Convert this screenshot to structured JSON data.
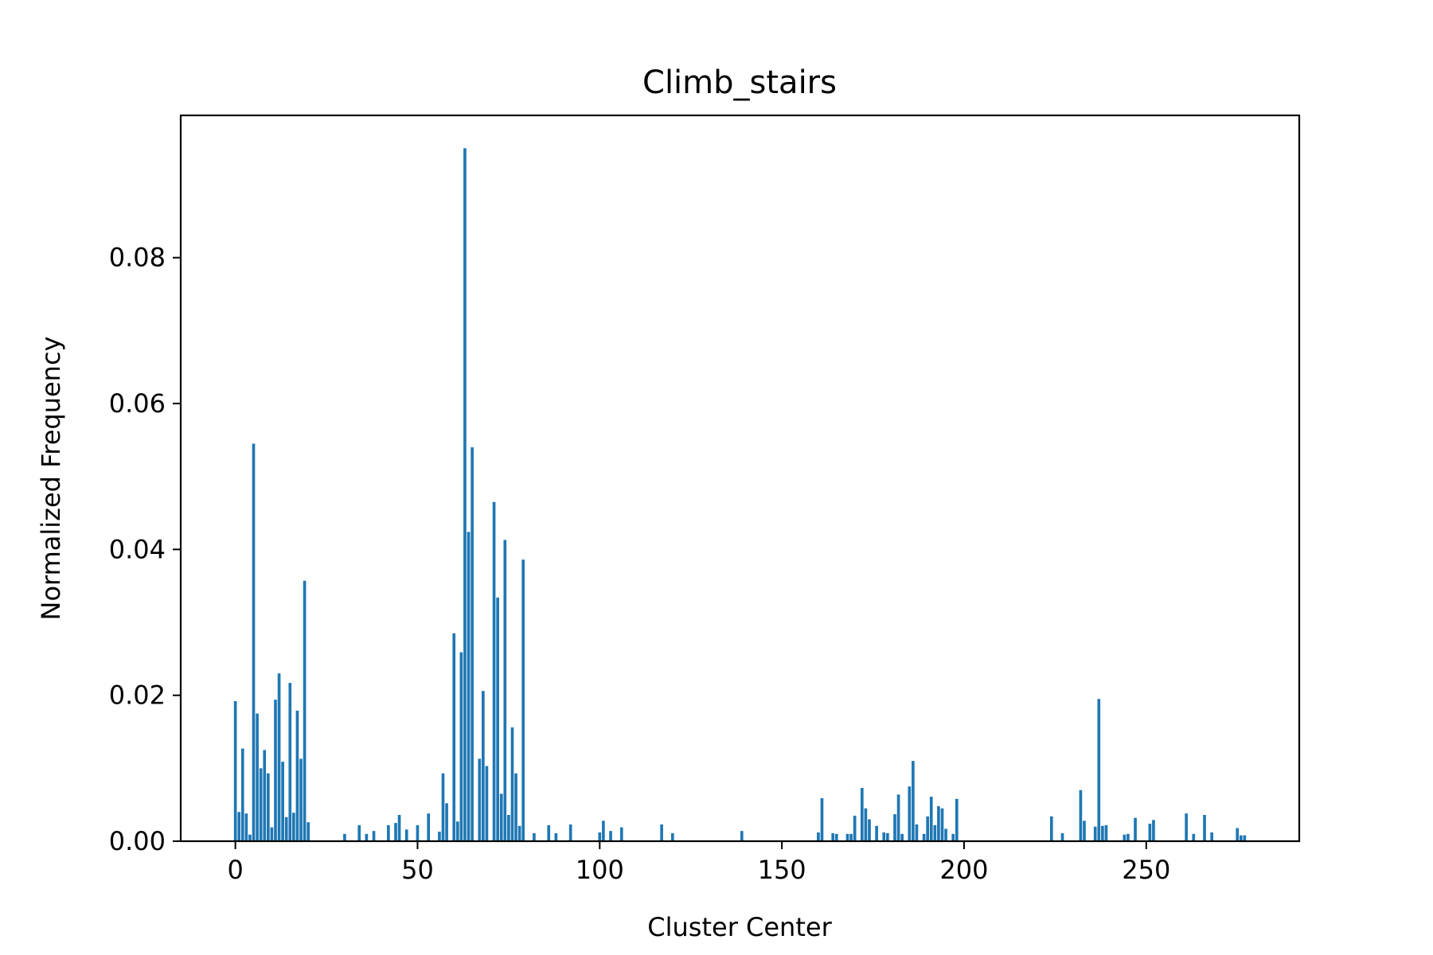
{
  "chart_data": {
    "type": "bar",
    "title": "Climb_stairs",
    "xlabel": "Cluster Center",
    "ylabel": "Normalized Frequency",
    "xlim": [
      -15,
      292
    ],
    "ylim": [
      0,
      0.0995
    ],
    "xticks": [
      0,
      50,
      100,
      150,
      200,
      250
    ],
    "xtick_labels": [
      "0",
      "50",
      "100",
      "150",
      "200",
      "250"
    ],
    "yticks": [
      0,
      0.02,
      0.04,
      0.06,
      0.08
    ],
    "ytick_labels": [
      "0.00",
      "0.02",
      "0.04",
      "0.06",
      "0.08"
    ],
    "grid": false,
    "legend": "none",
    "bar_color": "#1f77b4",
    "x": [
      0,
      1,
      2,
      3,
      4,
      5,
      6,
      7,
      8,
      9,
      10,
      11,
      12,
      13,
      14,
      15,
      16,
      17,
      18,
      19,
      20,
      30,
      34,
      36,
      38,
      42,
      44,
      45,
      47,
      50,
      53,
      56,
      57,
      58,
      60,
      61,
      62,
      63,
      64,
      65,
      67,
      68,
      69,
      71,
      72,
      73,
      74,
      75,
      76,
      77,
      78,
      79,
      82,
      86,
      88,
      92,
      100,
      101,
      103,
      106,
      117,
      120,
      139,
      160,
      161,
      164,
      165,
      168,
      169,
      170,
      172,
      173,
      174,
      176,
      178,
      179,
      181,
      182,
      183,
      185,
      186,
      187,
      189,
      190,
      191,
      192,
      193,
      194,
      195,
      197,
      198,
      224,
      227,
      232,
      233,
      236,
      237,
      238,
      239,
      244,
      245,
      247,
      251,
      252,
      261,
      263,
      266,
      268,
      275,
      276,
      277
    ],
    "values": [
      0.0192,
      0.004,
      0.0127,
      0.0038,
      0.0009,
      0.0545,
      0.0175,
      0.01,
      0.0125,
      0.0093,
      0.0019,
      0.0194,
      0.023,
      0.0109,
      0.0033,
      0.0217,
      0.0039,
      0.0179,
      0.0113,
      0.0357,
      0.0026,
      0.001,
      0.0022,
      0.001,
      0.0014,
      0.0022,
      0.0025,
      0.0036,
      0.0016,
      0.0022,
      0.0038,
      0.0013,
      0.0093,
      0.0052,
      0.0285,
      0.0027,
      0.0259,
      0.095,
      0.0424,
      0.054,
      0.0113,
      0.0206,
      0.0103,
      0.0465,
      0.0334,
      0.0065,
      0.0413,
      0.0036,
      0.0156,
      0.0093,
      0.0021,
      0.0386,
      0.0011,
      0.0022,
      0.0011,
      0.0023,
      0.0012,
      0.0028,
      0.0014,
      0.0019,
      0.0023,
      0.0011,
      0.0014,
      0.0012,
      0.0059,
      0.0011,
      0.001,
      0.001,
      0.001,
      0.0035,
      0.0073,
      0.0045,
      0.003,
      0.0021,
      0.0012,
      0.0011,
      0.0037,
      0.0064,
      0.001,
      0.0075,
      0.011,
      0.0023,
      0.001,
      0.0034,
      0.0061,
      0.0022,
      0.0048,
      0.0045,
      0.0017,
      0.001,
      0.0058,
      0.0034,
      0.0011,
      0.007,
      0.0028,
      0.002,
      0.0195,
      0.0021,
      0.0022,
      0.0009,
      0.001,
      0.0032,
      0.0024,
      0.0029,
      0.0038,
      0.001,
      0.0036,
      0.0012,
      0.0018,
      0.0008,
      0.0008
    ]
  }
}
